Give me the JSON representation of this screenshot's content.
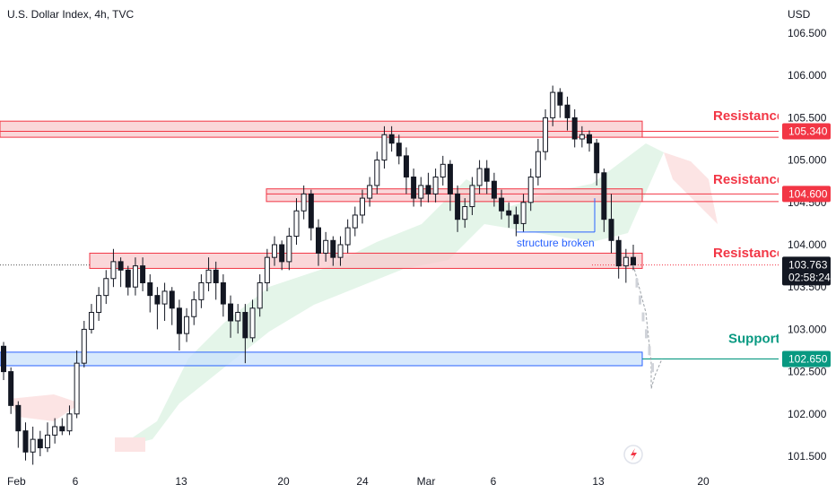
{
  "header": {
    "title": "U.S. Dollar Index, 4h, TVC",
    "currency": "USD"
  },
  "chart_data": {
    "type": "candlestick",
    "ylim": [
      101.3,
      106.8
    ],
    "y_ticks": [
      "106.500",
      "106.000",
      "105.500",
      "105.000",
      "104.500",
      "104.000",
      "103.500",
      "103.000",
      "102.500",
      "102.000",
      "101.500"
    ],
    "x_ticks": [
      "Feb",
      "6",
      "13",
      "20",
      "24",
      "Mar",
      "6",
      "13",
      "20"
    ],
    "colors": {
      "up": "#131722",
      "down": "#131722",
      "resistance": "#f23645",
      "support": "#089981",
      "zone_fill": "#f8c9cc",
      "support_fill": "#c9e2fb",
      "cloud_green": "#e4f5e9",
      "cloud_red": "#fce4e4"
    },
    "zones": [
      {
        "label": "Resistance",
        "level": "105.340",
        "low": 105.27,
        "high": 105.46
      },
      {
        "label": "Resistance",
        "level": "104.600",
        "low": 104.51,
        "high": 104.66
      },
      {
        "label": "Resistance",
        "level": "103.750",
        "low": 103.72,
        "high": 103.9
      },
      {
        "label": "Support",
        "level": "102.650",
        "low": 102.57,
        "high": 102.73
      }
    ],
    "price": {
      "value": "103.763",
      "countdown": "02:58:24"
    },
    "annotation": "structure broken",
    "candles": [
      [
        102.8,
        102.5,
        102.85,
        102.4
      ],
      [
        102.5,
        102.1,
        102.55,
        102.0
      ],
      [
        102.1,
        101.8,
        102.15,
        101.6
      ],
      [
        101.8,
        101.55,
        101.9,
        101.45
      ],
      [
        101.55,
        101.7,
        101.85,
        101.4
      ],
      [
        101.7,
        101.6,
        101.8,
        101.5
      ],
      [
        101.6,
        101.75,
        101.9,
        101.55
      ],
      [
        101.75,
        101.85,
        101.95,
        101.65
      ],
      [
        101.85,
        101.8,
        101.95,
        101.75
      ],
      [
        101.8,
        102.0,
        102.1,
        101.75
      ],
      [
        102.0,
        102.6,
        102.75,
        101.95
      ],
      [
        102.6,
        103.0,
        103.1,
        102.55
      ],
      [
        103.0,
        103.2,
        103.3,
        102.95
      ],
      [
        103.2,
        103.4,
        103.5,
        103.1
      ],
      [
        103.4,
        103.6,
        103.7,
        103.3
      ],
      [
        103.6,
        103.8,
        103.95,
        103.5
      ],
      [
        103.8,
        103.7,
        103.85,
        103.5
      ],
      [
        103.7,
        103.5,
        103.75,
        103.4
      ],
      [
        103.5,
        103.75,
        103.85,
        103.4
      ],
      [
        103.75,
        103.55,
        103.85,
        103.45
      ],
      [
        103.55,
        103.4,
        103.65,
        103.2
      ],
      [
        103.4,
        103.3,
        103.5,
        103.0
      ],
      [
        103.3,
        103.45,
        103.55,
        103.1
      ],
      [
        103.45,
        103.25,
        103.5,
        103.05
      ],
      [
        103.25,
        102.95,
        103.35,
        102.75
      ],
      [
        102.95,
        103.15,
        103.25,
        102.85
      ],
      [
        103.15,
        103.35,
        103.45,
        103.05
      ],
      [
        103.35,
        103.55,
        103.65,
        103.25
      ],
      [
        103.55,
        103.7,
        103.85,
        103.45
      ],
      [
        103.7,
        103.55,
        103.8,
        103.35
      ],
      [
        103.55,
        103.3,
        103.65,
        103.15
      ],
      [
        103.3,
        103.1,
        103.4,
        102.9
      ],
      [
        103.1,
        103.2,
        103.3,
        102.95
      ],
      [
        103.2,
        102.9,
        103.3,
        102.6
      ],
      [
        102.9,
        103.25,
        103.35,
        102.85
      ],
      [
        103.25,
        103.55,
        103.65,
        103.15
      ],
      [
        103.55,
        103.85,
        103.95,
        103.45
      ],
      [
        103.85,
        104.0,
        104.1,
        103.75
      ],
      [
        104.0,
        103.8,
        104.05,
        103.7
      ],
      [
        103.8,
        104.1,
        104.2,
        103.7
      ],
      [
        104.1,
        104.4,
        104.55,
        104.0
      ],
      [
        104.4,
        104.6,
        104.7,
        104.3
      ],
      [
        104.6,
        104.2,
        104.65,
        104.05
      ],
      [
        104.2,
        103.9,
        104.3,
        103.75
      ],
      [
        103.9,
        104.05,
        104.15,
        103.8
      ],
      [
        104.05,
        103.85,
        104.1,
        103.75
      ],
      [
        103.85,
        104.0,
        104.1,
        103.75
      ],
      [
        104.0,
        104.2,
        104.3,
        103.9
      ],
      [
        104.2,
        104.35,
        104.45,
        104.1
      ],
      [
        104.35,
        104.55,
        104.65,
        104.25
      ],
      [
        104.55,
        104.7,
        104.8,
        104.45
      ],
      [
        104.7,
        105.0,
        105.1,
        104.6
      ],
      [
        105.0,
        105.3,
        105.4,
        104.9
      ],
      [
        105.3,
        105.2,
        105.4,
        105.1
      ],
      [
        105.2,
        105.05,
        105.3,
        104.95
      ],
      [
        105.05,
        104.8,
        105.15,
        104.6
      ],
      [
        104.8,
        104.55,
        104.9,
        104.45
      ],
      [
        104.55,
        104.7,
        104.8,
        104.45
      ],
      [
        104.7,
        104.6,
        104.85,
        104.5
      ],
      [
        104.6,
        104.8,
        104.9,
        104.5
      ],
      [
        104.8,
        104.95,
        105.05,
        104.7
      ],
      [
        104.95,
        104.6,
        105.0,
        104.4
      ],
      [
        104.6,
        104.3,
        104.7,
        104.15
      ],
      [
        104.3,
        104.45,
        104.55,
        104.2
      ],
      [
        104.45,
        104.7,
        104.8,
        104.35
      ],
      [
        104.7,
        104.9,
        105.0,
        104.6
      ],
      [
        104.9,
        104.75,
        105.0,
        104.6
      ],
      [
        104.75,
        104.55,
        104.85,
        104.45
      ],
      [
        104.55,
        104.4,
        104.65,
        104.3
      ],
      [
        104.4,
        104.35,
        104.5,
        104.2
      ],
      [
        104.35,
        104.25,
        104.45,
        104.1
      ],
      [
        104.25,
        104.5,
        104.6,
        104.15
      ],
      [
        104.5,
        104.8,
        104.9,
        104.4
      ],
      [
        104.8,
        105.1,
        105.25,
        104.7
      ],
      [
        105.1,
        105.5,
        105.6,
        105.0
      ],
      [
        105.5,
        105.8,
        105.88,
        105.4
      ],
      [
        105.8,
        105.65,
        105.85,
        105.5
      ],
      [
        105.65,
        105.5,
        105.75,
        105.35
      ],
      [
        105.5,
        105.25,
        105.6,
        105.15
      ],
      [
        105.25,
        105.3,
        105.4,
        105.15
      ],
      [
        105.3,
        105.2,
        105.35,
        105.1
      ],
      [
        105.2,
        104.85,
        105.25,
        104.7
      ],
      [
        104.85,
        104.3,
        104.9,
        104.15
      ],
      [
        104.3,
        104.05,
        104.6,
        103.9
      ],
      [
        104.05,
        103.75,
        104.1,
        103.6
      ],
      [
        103.75,
        103.85,
        103.95,
        103.55
      ],
      [
        103.85,
        103.76,
        104.0,
        103.7
      ]
    ],
    "projection": [
      [
        102.55,
        102.3
      ],
      [
        102.3,
        102.4
      ],
      [
        102.4,
        102.65
      ]
    ]
  }
}
